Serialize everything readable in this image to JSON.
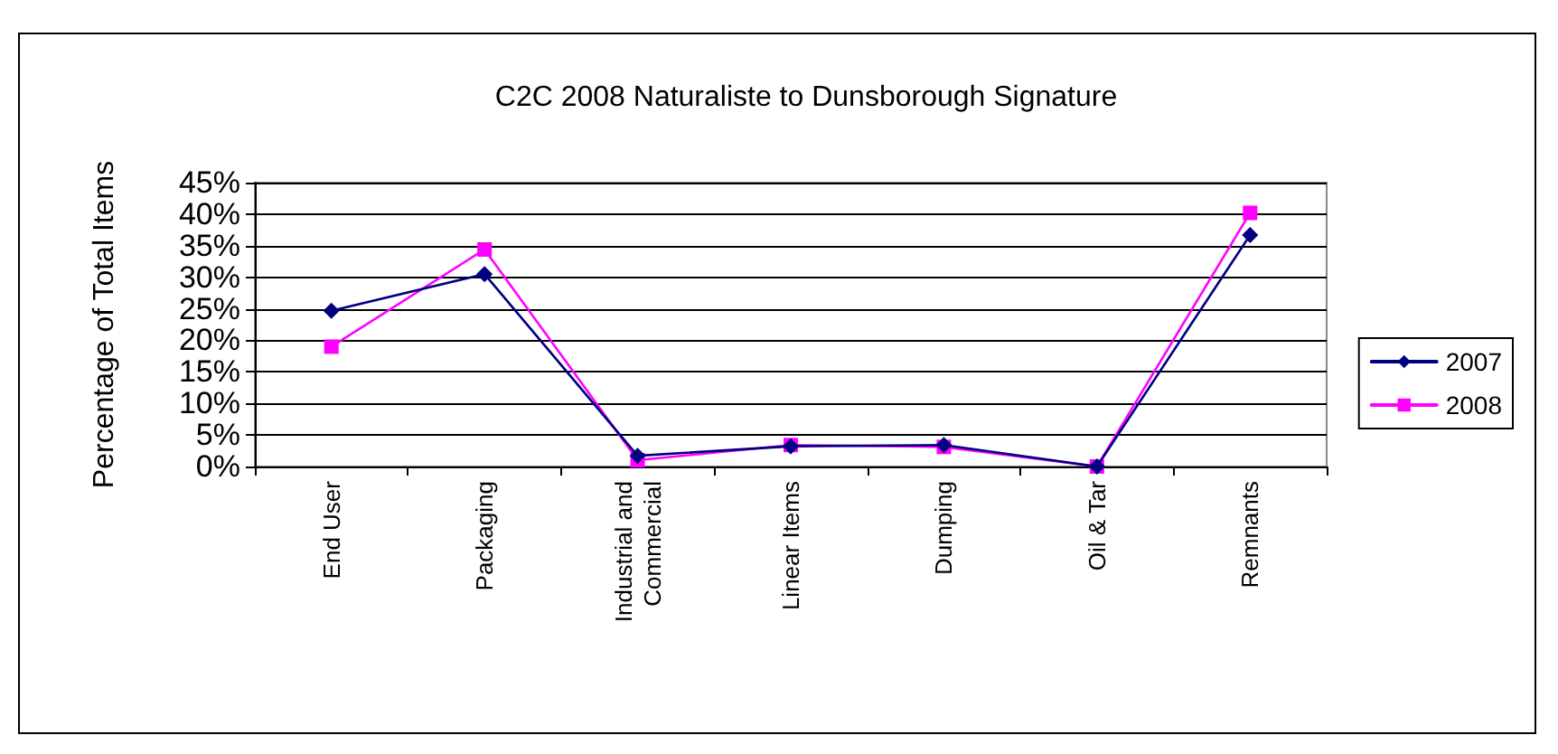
{
  "chart_data": {
    "type": "line",
    "title": "C2C 2008 Naturaliste to Dunsborough Signature",
    "ylabel": "Percentage of Total Items",
    "categories": [
      "End User",
      "Packaging",
      "Industrial and Commercial",
      "Linear Items",
      "Dumping",
      "Oil & Tar",
      "Remnants"
    ],
    "series": [
      {
        "name": "2007",
        "color": "#000080",
        "marker": "diamond",
        "values": [
          24.7,
          30.5,
          1.7,
          3.2,
          3.4,
          0,
          36.7
        ]
      },
      {
        "name": "2008",
        "color": "#ff00ff",
        "marker": "square",
        "values": [
          19,
          34.4,
          1.0,
          3.4,
          3.1,
          0,
          40.2
        ]
      }
    ],
    "ylim": [
      0,
      45
    ],
    "yticks": [
      {
        "value": 0,
        "label": "0%"
      },
      {
        "value": 5,
        "label": "5%"
      },
      {
        "value": 10,
        "label": "10%"
      },
      {
        "value": 15,
        "label": "15%"
      },
      {
        "value": 20,
        "label": "20%"
      },
      {
        "value": 25,
        "label": "25%"
      },
      {
        "value": 30,
        "label": "30%"
      },
      {
        "value": 35,
        "label": "35%"
      },
      {
        "value": 40,
        "label": "40%"
      },
      {
        "value": 45,
        "label": "45%"
      }
    ],
    "grid": "y",
    "legend": "right",
    "line_style": "solid"
  }
}
